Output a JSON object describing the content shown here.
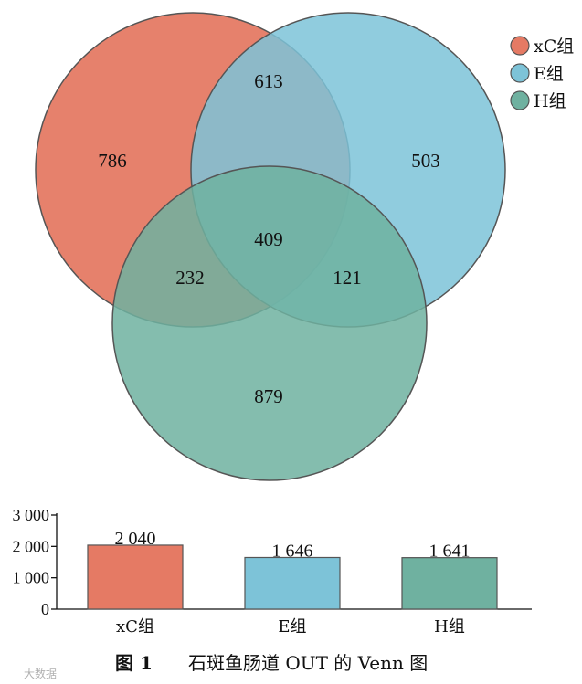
{
  "colors": {
    "xc": "#e57a64",
    "e": "#7dc3d8",
    "h": "#6fb1a0",
    "outline": "#555555"
  },
  "chart_data": [
    {
      "type": "venn",
      "sets": [
        "xC组",
        "E组",
        "H组"
      ],
      "regions": {
        "xC_only": "786",
        "E_only": "503",
        "H_only": "879",
        "xC_E": "613",
        "xC_H": "232",
        "E_H": "121",
        "xC_E_H": "409"
      },
      "legend": {
        "placement": "top-right",
        "entries": [
          {
            "label": "xC组",
            "color": "#e57a64"
          },
          {
            "label": "E组",
            "color": "#7dc3d8"
          },
          {
            "label": "H组",
            "color": "#6fb1a0"
          }
        ]
      }
    },
    {
      "type": "bar",
      "categories": [
        "xC组",
        "E组",
        "H组"
      ],
      "values": [
        2040,
        1646,
        1641
      ],
      "value_labels": [
        "2 040",
        "1 646",
        "1 641"
      ],
      "ylim": [
        0,
        3000
      ],
      "yticks": [
        0,
        1000,
        2000,
        3000
      ],
      "ytick_labels": [
        "0",
        "1 000",
        "2 000",
        "3 000"
      ],
      "colors": [
        "#e57a64",
        "#7dc3d8",
        "#6fb1a0"
      ]
    }
  ],
  "caption": {
    "number": "图 1",
    "text": "石斑鱼肠道 OUT 的 Venn 图"
  },
  "watermark": "大数据"
}
